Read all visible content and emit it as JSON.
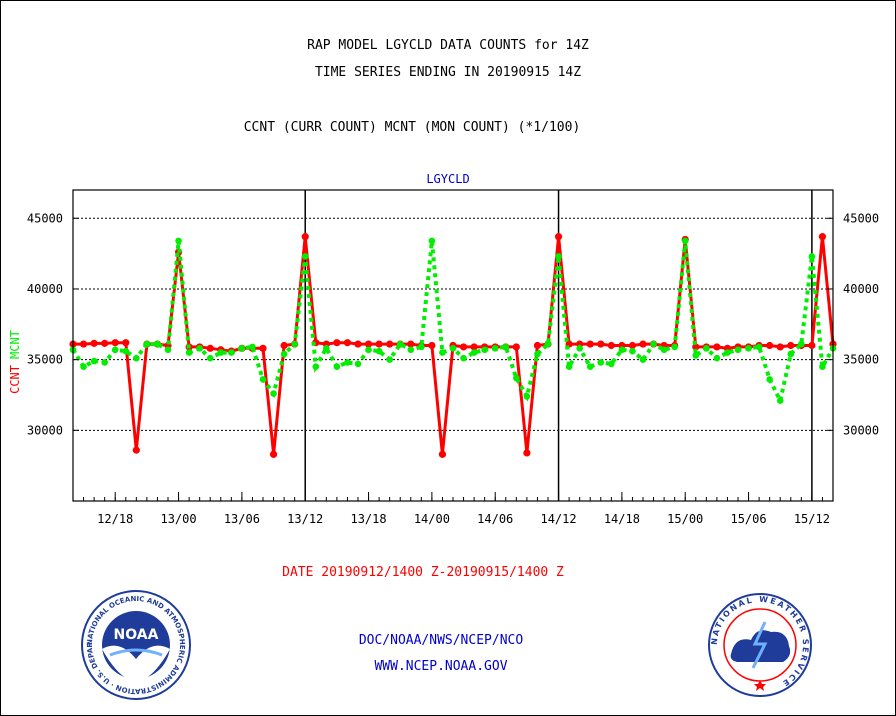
{
  "header": {
    "title_line1": "RAP MODEL LGYCLD DATA COUNTS for 14Z",
    "title_line2": "TIME SERIES ENDING IN 20190915 14Z",
    "subtitle": "CCNT (CURR COUNT) MCNT (MON COUNT) (*1/100)"
  },
  "chart_data": {
    "type": "line",
    "panel_label": "LGYCLD",
    "ylabel_left_red": "CCNT",
    "ylabel_left_green": "MCNT",
    "xlabel": "DATE 20190912/1400 Z-20190915/1400 Z",
    "ylim": [
      25000,
      47000
    ],
    "xlim_hours": [
      0,
      72
    ],
    "y_ticks": [
      30000,
      35000,
      40000,
      45000
    ],
    "y_tick_labels": [
      "30000",
      "35000",
      "40000",
      "45000"
    ],
    "x_ticks": [
      {
        "hour": 4,
        "label": "12/18"
      },
      {
        "hour": 10,
        "label": "13/00"
      },
      {
        "hour": 16,
        "label": "13/06"
      },
      {
        "hour": 22,
        "label": "13/12"
      },
      {
        "hour": 28,
        "label": "13/18"
      },
      {
        "hour": 34,
        "label": "14/00"
      },
      {
        "hour": 40,
        "label": "14/06"
      },
      {
        "hour": 46,
        "label": "14/12"
      },
      {
        "hour": 52,
        "label": "14/18"
      },
      {
        "hour": 58,
        "label": "15/00"
      },
      {
        "hour": 64,
        "label": "15/06"
      },
      {
        "hour": 70,
        "label": "15/12"
      }
    ],
    "day_boundaries_hours": [
      22,
      46,
      70
    ],
    "grid": "horizontal dotted",
    "series": [
      {
        "name": "CCNT",
        "color": "#ff0000",
        "style": "solid",
        "values": [
          36100,
          36100,
          36150,
          36150,
          36200,
          36200,
          28600,
          36100,
          36100,
          36000,
          42600,
          35900,
          35900,
          35800,
          35700,
          35600,
          35800,
          35800,
          35800,
          28300,
          36000,
          36100,
          43700,
          36200,
          36100,
          36200,
          36200,
          36100,
          36100,
          36100,
          36100,
          36100,
          36100,
          36000,
          36000,
          28300,
          36000,
          35900,
          35900,
          35900,
          35900,
          35900,
          35900,
          28400,
          36000,
          36100,
          43700,
          36100,
          36100,
          36100,
          36100,
          36000,
          36000,
          36000,
          36100,
          36100,
          36000,
          36000,
          43500,
          35900,
          35900,
          35900,
          35800,
          35900,
          35900,
          36000,
          36000,
          35900,
          36000,
          36000,
          36000,
          43700,
          36100
        ]
      },
      {
        "name": "MCNT",
        "color": "#00ee00",
        "style": "dotted",
        "values": [
          35700,
          34500,
          34900,
          34800,
          35700,
          35600,
          35100,
          36100,
          36100,
          35700,
          43400,
          35500,
          35800,
          35100,
          35500,
          35500,
          35800,
          35900,
          33600,
          32600,
          35400,
          36100,
          42300,
          34500,
          35800,
          34500,
          34800,
          34700,
          35700,
          35600,
          35000,
          36100,
          35700,
          35900,
          43400,
          35500,
          35800,
          35100,
          35500,
          35700,
          35800,
          35900,
          33700,
          32400,
          35400,
          36100,
          42300,
          34500,
          35800,
          34500,
          34800,
          34700,
          35700,
          35600,
          35000,
          36100,
          35700,
          35900,
          43400,
          35300,
          35800,
          35100,
          35500,
          35700,
          35800,
          35900,
          33600,
          32100,
          35400,
          36100,
          42300,
          34500,
          35800
        ]
      }
    ]
  },
  "footer": {
    "agency_line1": "DOC/NOAA/NWS/NCEP/NCO",
    "agency_line2": "WWW.NCEP.NOAA.GOV",
    "noaa_logo_text": "NOAA",
    "noaa_ring_text": "NATIONAL OCEANIC AND ATMOSPHERIC ADMINISTRATION · U.S. DEPARTMENT OF COMMERCE ·",
    "nws_ring_text": "NATIONAL WEATHER SERVICE"
  },
  "colors": {
    "ccnt": "#ff0000",
    "mcnt": "#00ee00",
    "label_blue": "#0000cc",
    "noaa_blue": "#1f3c9a"
  }
}
